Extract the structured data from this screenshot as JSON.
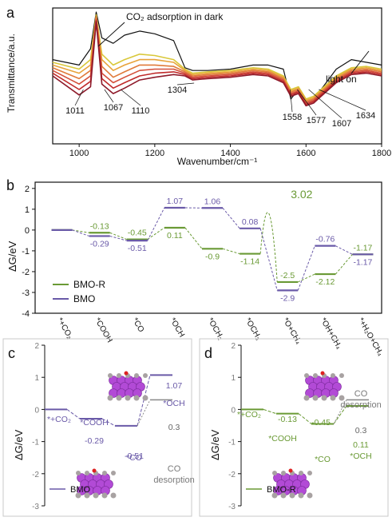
{
  "colors": {
    "bmo": "#6a5aa8",
    "bmo_r": "#6a9a35",
    "axis": "#111111",
    "gray_text": "#7a7a7a",
    "ftir_series": [
      "#111111",
      "#d9c83a",
      "#e8a33a",
      "#e07a3a",
      "#d4503a",
      "#c02a2a",
      "#8e1a2a"
    ]
  },
  "chart_data": [
    {
      "panel": "a",
      "type": "line",
      "xlabel": "Wavenumber/cm⁻¹",
      "ylabel": "Transmittance/a.u.",
      "xlim": [
        930,
        1800
      ],
      "xticks": [
        1000,
        1200,
        1400,
        1600,
        1800
      ],
      "y_ticks_shown": false,
      "annotations": [
        {
          "text": "CO₂ adsorption in dark",
          "x": 1080
        },
        {
          "text": "light on",
          "x": 1760
        }
      ],
      "peak_labels": [
        "1011",
        "1067",
        "1110",
        "1304",
        "1558",
        "1577",
        "1607",
        "1634"
      ],
      "peak_positions": [
        1011,
        1067,
        1110,
        1304,
        1558,
        1577,
        1607,
        1634
      ],
      "series": [
        {
          "x": [
            930,
            1000,
            1030,
            1045,
            1060,
            1090,
            1120,
            1160,
            1200,
            1250,
            1280,
            1300,
            1340,
            1400,
            1460,
            1500,
            1540,
            1560,
            1580,
            1600,
            1620,
            1640,
            1680,
            1720,
            1760,
            1800
          ],
          "y": [
            0.62,
            0.58,
            0.7,
            0.97,
            0.78,
            0.74,
            0.8,
            0.83,
            0.81,
            0.76,
            0.56,
            0.54,
            0.54,
            0.55,
            0.58,
            0.58,
            0.55,
            0.33,
            0.4,
            0.3,
            0.32,
            0.4,
            0.55,
            0.62,
            0.6,
            0.58
          ]
        },
        {
          "x": [
            930,
            1000,
            1030,
            1045,
            1060,
            1090,
            1120,
            1160,
            1200,
            1250,
            1280,
            1300,
            1340,
            1400,
            1460,
            1500,
            1540,
            1560,
            1580,
            1600,
            1620,
            1640,
            1680,
            1720,
            1760,
            1800
          ],
          "y": [
            0.6,
            0.55,
            0.62,
            0.95,
            0.66,
            0.58,
            0.62,
            0.66,
            0.65,
            0.62,
            0.55,
            0.52,
            0.53,
            0.54,
            0.56,
            0.55,
            0.5,
            0.4,
            0.42,
            0.33,
            0.35,
            0.4,
            0.5,
            0.56,
            0.57,
            0.55
          ]
        },
        {
          "x": [
            930,
            1000,
            1030,
            1045,
            1060,
            1090,
            1120,
            1160,
            1200,
            1250,
            1280,
            1300,
            1340,
            1400,
            1460,
            1500,
            1540,
            1560,
            1580,
            1600,
            1620,
            1640,
            1680,
            1720,
            1760,
            1800
          ],
          "y": [
            0.58,
            0.52,
            0.58,
            0.94,
            0.62,
            0.54,
            0.58,
            0.62,
            0.62,
            0.6,
            0.54,
            0.51,
            0.52,
            0.53,
            0.55,
            0.54,
            0.49,
            0.39,
            0.41,
            0.32,
            0.34,
            0.39,
            0.49,
            0.55,
            0.56,
            0.54
          ]
        },
        {
          "x": [
            930,
            1000,
            1030,
            1045,
            1060,
            1090,
            1120,
            1160,
            1200,
            1250,
            1280,
            1300,
            1340,
            1400,
            1460,
            1500,
            1540,
            1560,
            1580,
            1600,
            1620,
            1640,
            1680,
            1720,
            1760,
            1800
          ],
          "y": [
            0.56,
            0.48,
            0.54,
            0.93,
            0.57,
            0.49,
            0.53,
            0.58,
            0.58,
            0.57,
            0.53,
            0.5,
            0.51,
            0.52,
            0.54,
            0.53,
            0.48,
            0.38,
            0.4,
            0.31,
            0.33,
            0.38,
            0.48,
            0.54,
            0.55,
            0.53
          ]
        },
        {
          "x": [
            930,
            1000,
            1030,
            1045,
            1060,
            1090,
            1120,
            1160,
            1200,
            1250,
            1280,
            1300,
            1340,
            1400,
            1460,
            1500,
            1540,
            1560,
            1580,
            1600,
            1620,
            1640,
            1680,
            1720,
            1760,
            1800
          ],
          "y": [
            0.54,
            0.44,
            0.5,
            0.92,
            0.52,
            0.45,
            0.49,
            0.54,
            0.55,
            0.55,
            0.52,
            0.49,
            0.5,
            0.51,
            0.53,
            0.52,
            0.47,
            0.37,
            0.39,
            0.3,
            0.32,
            0.37,
            0.47,
            0.53,
            0.54,
            0.52
          ]
        },
        {
          "x": [
            930,
            1000,
            1030,
            1045,
            1060,
            1090,
            1120,
            1160,
            1200,
            1250,
            1280,
            1300,
            1340,
            1400,
            1460,
            1500,
            1540,
            1560,
            1580,
            1600,
            1620,
            1640,
            1680,
            1720,
            1760,
            1800
          ],
          "y": [
            0.52,
            0.4,
            0.46,
            0.91,
            0.48,
            0.41,
            0.45,
            0.5,
            0.52,
            0.53,
            0.51,
            0.48,
            0.49,
            0.5,
            0.52,
            0.51,
            0.46,
            0.36,
            0.38,
            0.29,
            0.31,
            0.36,
            0.46,
            0.52,
            0.53,
            0.51
          ]
        },
        {
          "x": [
            930,
            1000,
            1030,
            1045,
            1060,
            1090,
            1120,
            1160,
            1200,
            1250,
            1280,
            1300,
            1340,
            1400,
            1460,
            1500,
            1540,
            1560,
            1580,
            1600,
            1620,
            1640,
            1680,
            1720,
            1760,
            1800
          ],
          "y": [
            0.5,
            0.36,
            0.42,
            0.9,
            0.44,
            0.37,
            0.41,
            0.47,
            0.49,
            0.51,
            0.5,
            0.47,
            0.48,
            0.49,
            0.51,
            0.5,
            0.45,
            0.35,
            0.37,
            0.28,
            0.3,
            0.35,
            0.45,
            0.51,
            0.52,
            0.5
          ]
        }
      ]
    },
    {
      "panel": "b",
      "type": "line",
      "ylabel": "ΔG/eV",
      "ylim": [
        -4,
        2.3
      ],
      "yticks": [
        -4,
        -3,
        -2,
        -1,
        0,
        1,
        2
      ],
      "categories": [
        "*+CO₂",
        "*COOH",
        "*CO",
        "*OCH",
        "*OCH₂",
        "*OCH₃",
        "*O+CH₄",
        "*OH+CH₄",
        "*+H₂O+CH₄"
      ],
      "legend": [
        "BMO-R",
        "BMO"
      ],
      "series": [
        {
          "name": "BMO-R",
          "values": [
            0,
            -0.13,
            -0.45,
            0.11,
            -0.9,
            -1.14,
            -2.5,
            -2.12,
            -1.17
          ],
          "labels": [
            "",
            "-0.13",
            "-0.45",
            "0.11",
            "-0.9",
            "-1.14",
            "-2.5",
            "-2.12",
            "-1.17"
          ]
        },
        {
          "name": "BMO",
          "values": [
            0,
            -0.29,
            -0.51,
            1.07,
            1.06,
            0.08,
            -2.9,
            -0.76,
            -1.17
          ],
          "labels": [
            "",
            "-0.29",
            "-0.51",
            "1.07",
            "1.06",
            "0.08",
            "-2.9",
            "-0.76",
            "-1.17"
          ]
        }
      ],
      "barrier_label": "3.02"
    },
    {
      "panel": "c",
      "type": "line",
      "ylabel": "ΔG/eV",
      "ylim": [
        -3,
        2
      ],
      "yticks": [
        -3,
        -2,
        -1,
        0,
        1,
        2
      ],
      "legend": [
        "BMO"
      ],
      "steps": [
        {
          "label": "*+CO₂",
          "value": 0
        },
        {
          "label": "*COOH",
          "value": -0.29
        },
        {
          "label": "*CO",
          "value": -0.51
        },
        {
          "label": "*OCH",
          "value": 1.07
        },
        {
          "label": "CO desorption",
          "value": 0.3
        }
      ],
      "value_labels": [
        "-0.29",
        "-0.51",
        "1.07",
        "0.3"
      ]
    },
    {
      "panel": "d",
      "type": "line",
      "ylabel": "ΔG/eV",
      "ylim": [
        -3,
        2
      ],
      "yticks": [
        -3,
        -2,
        -1,
        0,
        1,
        2
      ],
      "legend": [
        "BMO-R"
      ],
      "steps": [
        {
          "label": "*+CO₂",
          "value": 0
        },
        {
          "label": "*COOH",
          "value": -0.13
        },
        {
          "label": "*CO",
          "value": -0.45
        },
        {
          "label": "*OCH",
          "value": 0.11
        },
        {
          "label": "CO desorption",
          "value": 0.3
        }
      ],
      "value_labels": [
        "-0.13",
        "-0.45",
        "0.11",
        "0.3"
      ]
    }
  ]
}
